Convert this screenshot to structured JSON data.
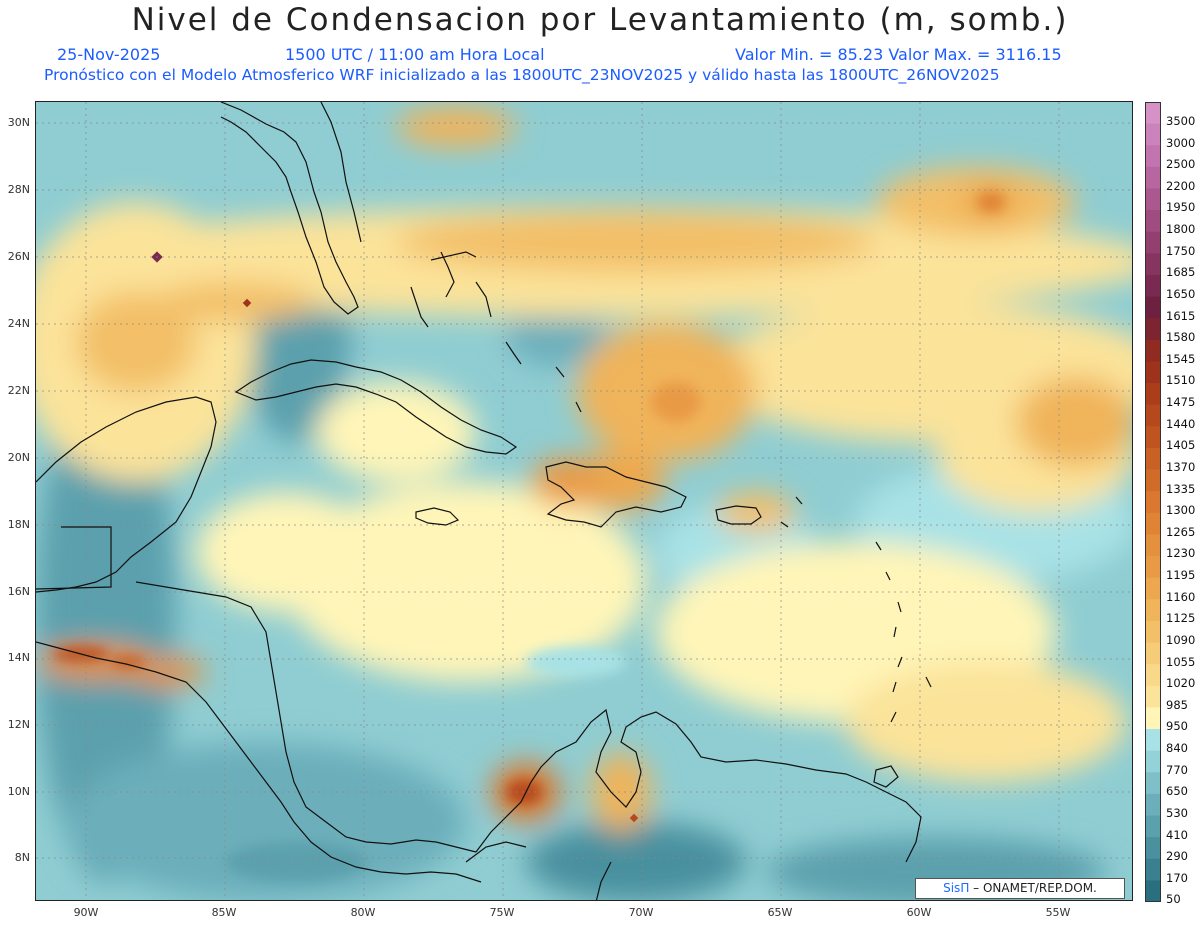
{
  "title": "Nivel de Condensacion por Levantamiento (m, somb.)",
  "header": {
    "date": "25-Nov-2025",
    "time": "1500 UTC / 11:00 am Hora Local",
    "min_max": "Valor Min. = 85.23  Valor Max. = 3116.15",
    "forecast_note": "Pronóstico con el Modelo Atmosferico WRF inicializado a las 1800UTC_23NOV2025 y válido hasta las  1800UTC_26NOV2025"
  },
  "axes": {
    "lat_labels": [
      "30N",
      "28N",
      "26N",
      "24N",
      "22N",
      "20N",
      "18N",
      "16N",
      "14N",
      "12N",
      "10N",
      "8N"
    ],
    "lon_labels": [
      "90W",
      "85W",
      "80W",
      "75W",
      "70W",
      "65W",
      "60W",
      "55W"
    ]
  },
  "colorbar": {
    "labels": [
      "3500",
      "3000",
      "2500",
      "2200",
      "1950",
      "1800",
      "1750",
      "1685",
      "1650",
      "1615",
      "1580",
      "1545",
      "1510",
      "1475",
      "1440",
      "1405",
      "1370",
      "1335",
      "1300",
      "1265",
      "1230",
      "1195",
      "1160",
      "1125",
      "1090",
      "1055",
      "1020",
      "985",
      "950",
      "840",
      "770",
      "650",
      "530",
      "410",
      "290",
      "170",
      "50"
    ],
    "colors": [
      "#2a6f80",
      "#3a8090",
      "#4a909f",
      "#5ba0ad",
      "#6cafbb",
      "#7fc0c8",
      "#93d2d6",
      "#a8e2e6",
      "#fff5b8",
      "#fbe39a",
      "#f9d88a",
      "#f6cc78",
      "#f3bf67",
      "#f0b45a",
      "#eda74e",
      "#e99a44",
      "#e4903c",
      "#df8434",
      "#d9782e",
      "#d16c28",
      "#c96024",
      "#c05420",
      "#b6481d",
      "#ab3d1b",
      "#9e321b",
      "#8f2b20",
      "#7c2430",
      "#6e2040",
      "#7a2a50",
      "#863560",
      "#934070",
      "#9f4c80",
      "#ab5890",
      "#b766a0",
      "#c274b0",
      "#cc82bb",
      "#d691c6"
    ]
  },
  "credit": {
    "brand": "SisΠ",
    "text": " – ONAMET/REP.DOM."
  }
}
